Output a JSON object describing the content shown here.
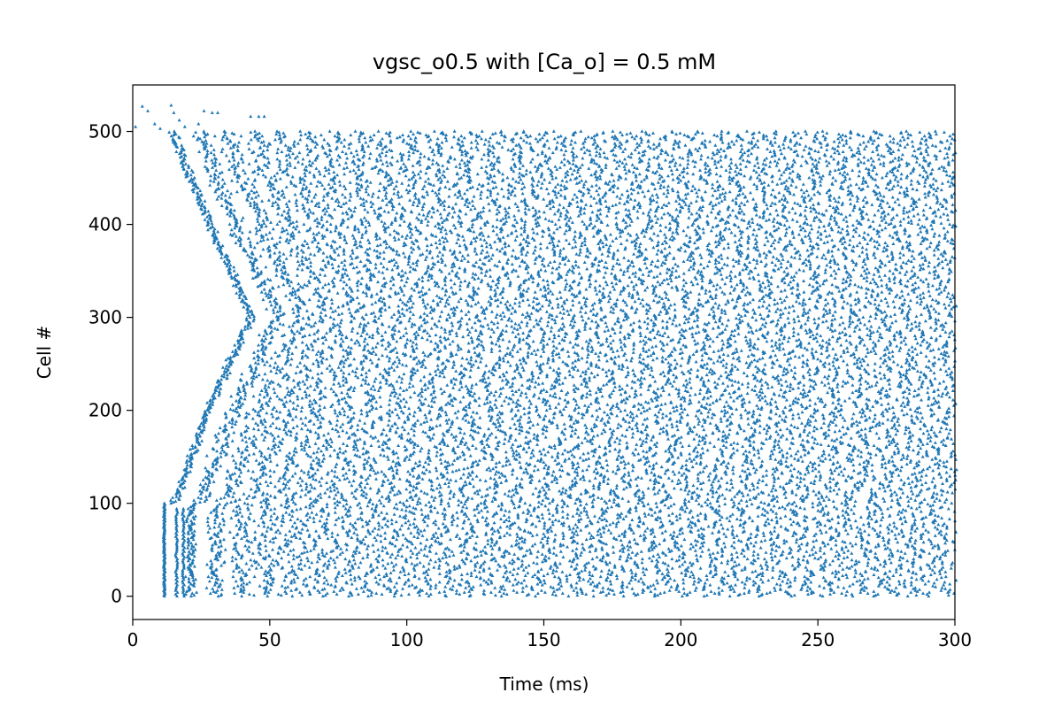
{
  "chart_data": {
    "type": "scatter",
    "title": "vgsc_o0.5 with [Ca_o] = 0.5 mM",
    "xlabel": "Time (ms)",
    "ylabel": "Cell #",
    "xlim": [
      0,
      300
    ],
    "ylim": [
      -25,
      550
    ],
    "xticks": [
      0,
      50,
      100,
      150,
      200,
      250,
      300
    ],
    "yticks": [
      0,
      100,
      200,
      300,
      400,
      500
    ],
    "grid": false,
    "marker": "triangle-up",
    "color": "#1f77b4",
    "series": [
      {
        "description_points": "raster of spike events",
        "initial_burst": {
          "time": 11.5,
          "cells": [
            0,
            100
          ]
        },
        "early_columns": [
          {
            "time": 16,
            "cells": [
              0,
              95
            ]
          },
          {
            "time": 18.5,
            "cells": [
              0,
              95
            ]
          }
        ],
        "wavefront": [
          {
            "cell": 100,
            "time": 14
          },
          {
            "cell": 200,
            "time": 26
          },
          {
            "cell": 300,
            "time": 42
          },
          {
            "cell": 400,
            "time": 27
          },
          {
            "cell": 500,
            "time": 13
          }
        ],
        "sparse_top_events": [
          {
            "time": 1,
            "cell": 505
          },
          {
            "time": 3.5,
            "cell": 527
          },
          {
            "time": 5.5,
            "cell": 522
          },
          {
            "time": 8,
            "cell": 508
          },
          {
            "time": 10,
            "cell": 503
          },
          {
            "time": 14,
            "cell": 528
          },
          {
            "time": 15,
            "cell": 520
          },
          {
            "time": 17,
            "cell": 512
          },
          {
            "time": 19,
            "cell": 505
          },
          {
            "time": 24,
            "cell": 508
          },
          {
            "time": 26,
            "cell": 522
          },
          {
            "time": 29,
            "cell": 520
          },
          {
            "time": 31,
            "cell": 520
          },
          {
            "time": 43,
            "cell": 516
          },
          {
            "time": 46,
            "cell": 516
          },
          {
            "time": 48,
            "cell": 516
          }
        ],
        "cell_range": [
          0,
          500
        ],
        "time_range": [
          0,
          300
        ]
      }
    ]
  }
}
